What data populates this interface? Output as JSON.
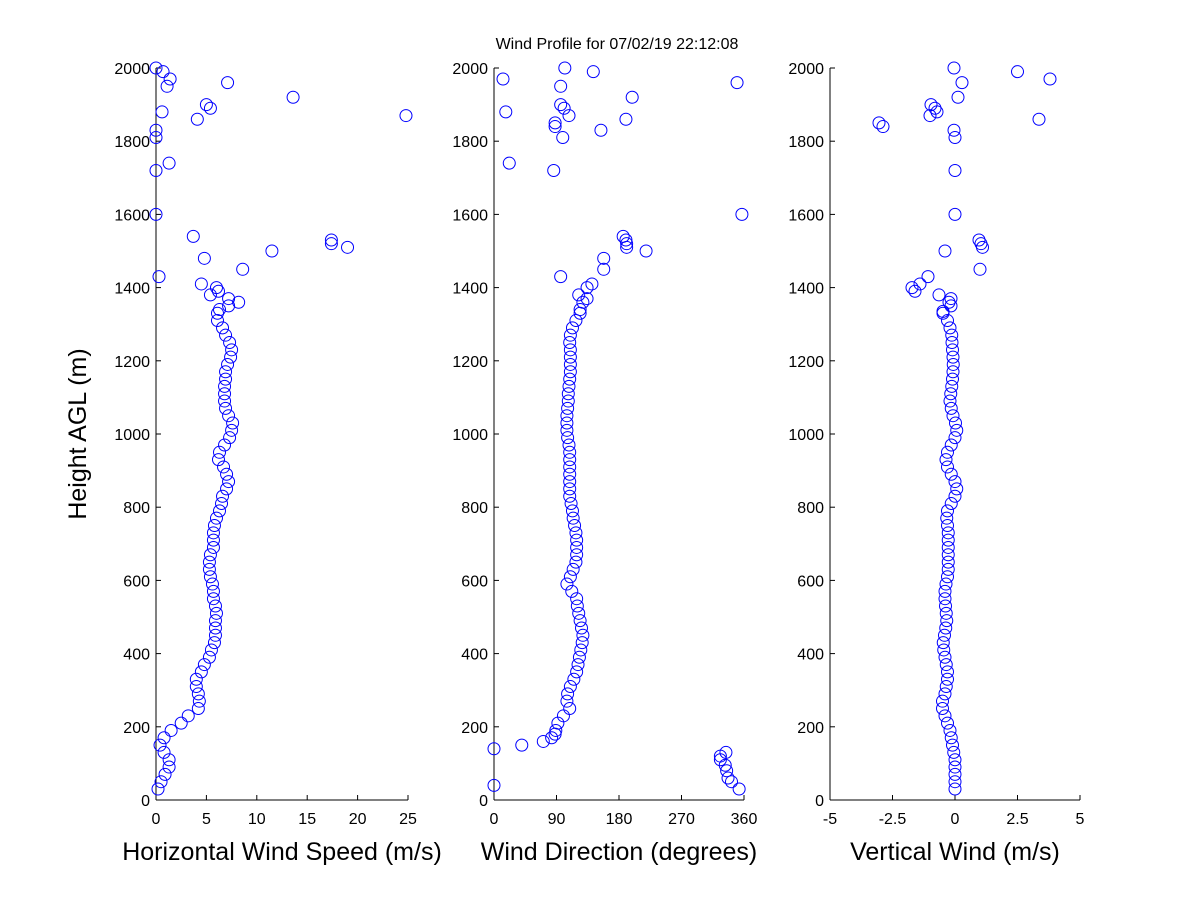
{
  "title": "Wind Profile for  07/02/19 22:12:08",
  "marker_color": "#0000ff",
  "chart_data": [
    {
      "type": "scatter",
      "xlabel": "Horizontal Wind Speed (m/s)",
      "ylabel": "Height AGL (m)",
      "xlim": [
        0,
        25
      ],
      "ylim": [
        0,
        2000
      ],
      "xticks": [
        "0",
        "5",
        "10",
        "15",
        "20",
        "25"
      ],
      "xtick_values": [
        0,
        5,
        10,
        15,
        20,
        25
      ],
      "yticks": [
        "0",
        "200",
        "400",
        "600",
        "800",
        "1000",
        "1200",
        "1400",
        "1600",
        "1800",
        "2000"
      ],
      "ytick_values": [
        0,
        200,
        400,
        600,
        800,
        1000,
        1200,
        1400,
        1600,
        1800,
        2000
      ],
      "grid": false,
      "marker": "open-circle",
      "series": [
        {
          "y": [
            30,
            50,
            70,
            90,
            110,
            130,
            150,
            170,
            190,
            210,
            230,
            250,
            270,
            290,
            310,
            330,
            350,
            370,
            390,
            410,
            430,
            450,
            470,
            490,
            510,
            530,
            550,
            570,
            590,
            610,
            630,
            650,
            670,
            690,
            710,
            730,
            750,
            770,
            790,
            810,
            830,
            850,
            870,
            890,
            910,
            930,
            950,
            970,
            990,
            1010,
            1030,
            1050,
            1070,
            1090,
            1110,
            1130,
            1150,
            1170,
            1190,
            1210,
            1230,
            1250,
            1270,
            1290,
            1310,
            1330,
            1340,
            1350,
            1360,
            1370,
            1380,
            1390,
            1400,
            1410,
            1430,
            1450,
            1480,
            1500,
            1510,
            1520,
            1530,
            1540,
            1600,
            1720,
            1740,
            1810,
            1830,
            1860,
            1870,
            1880,
            1890,
            1900,
            1920,
            1950,
            1960,
            1970,
            1990,
            2000
          ],
          "x": [
            0.2,
            0.5,
            0.9,
            1.3,
            1.3,
            0.8,
            0.4,
            0.8,
            1.5,
            2.5,
            3.2,
            4.2,
            4.3,
            4.2,
            4.0,
            4.0,
            4.5,
            4.8,
            5.3,
            5.5,
            5.8,
            5.9,
            5.9,
            5.9,
            6.0,
            5.9,
            5.7,
            5.7,
            5.6,
            5.4,
            5.3,
            5.3,
            5.4,
            5.7,
            5.7,
            5.7,
            5.8,
            6.0,
            6.3,
            6.5,
            6.6,
            7.0,
            7.2,
            7.0,
            6.7,
            6.2,
            6.3,
            6.8,
            7.3,
            7.5,
            7.6,
            7.2,
            6.9,
            6.8,
            6.8,
            6.8,
            6.9,
            6.9,
            7.1,
            7.4,
            7.5,
            7.3,
            6.9,
            6.6,
            6.1,
            6.1,
            6.3,
            7.2,
            8.2,
            7.2,
            5.4,
            6.2,
            6.0,
            4.5,
            0.3,
            8.6,
            4.8,
            11.5,
            19.0,
            17.4,
            17.4,
            3.7,
            0,
            0,
            1.3,
            0,
            0,
            4.1,
            24.8,
            0.6,
            5.4,
            5.0,
            13.6,
            1.1,
            7.1,
            1.4,
            0.7,
            0
          ]
        }
      ]
    },
    {
      "type": "scatter",
      "xlabel": "Wind Direction (degrees)",
      "ylabel": "",
      "xlim": [
        0,
        360
      ],
      "ylim": [
        0,
        2000
      ],
      "xticks": [
        "0",
        "90",
        "180",
        "270",
        "360"
      ],
      "xtick_values": [
        0,
        90,
        180,
        270,
        360
      ],
      "yticks": [
        "0",
        "200",
        "400",
        "600",
        "800",
        "1000",
        "1200",
        "1400",
        "1600",
        "1800",
        "2000"
      ],
      "ytick_values": [
        0,
        200,
        400,
        600,
        800,
        1000,
        1200,
        1400,
        1600,
        1800,
        2000
      ],
      "grid": false,
      "marker": "open-circle",
      "series": [
        {
          "y": [
            30,
            40,
            50,
            60,
            80,
            95,
            110,
            120,
            130,
            140,
            150,
            160,
            170,
            180,
            190,
            210,
            230,
            250,
            270,
            290,
            310,
            330,
            350,
            370,
            390,
            410,
            430,
            450,
            470,
            490,
            510,
            530,
            550,
            570,
            590,
            610,
            630,
            650,
            670,
            690,
            710,
            730,
            750,
            770,
            790,
            810,
            830,
            850,
            870,
            890,
            910,
            930,
            950,
            970,
            990,
            1010,
            1030,
            1050,
            1070,
            1090,
            1110,
            1130,
            1150,
            1170,
            1190,
            1210,
            1230,
            1250,
            1270,
            1290,
            1310,
            1330,
            1340,
            1360,
            1370,
            1380,
            1400,
            1410,
            1430,
            1450,
            1480,
            1500,
            1510,
            1520,
            1530,
            1540,
            1600,
            1720,
            1740,
            1810,
            1830,
            1840,
            1850,
            1860,
            1870,
            1880,
            1890,
            1900,
            1920,
            1950,
            1960,
            1970,
            1990,
            2000
          ],
          "x": [
            353,
            0,
            342,
            337,
            335,
            333,
            326,
            326,
            334,
            0,
            40,
            71,
            83,
            88,
            89,
            92,
            100,
            109,
            105,
            106,
            110,
            115,
            119,
            121,
            123,
            125,
            127,
            128,
            126,
            124,
            122,
            120,
            119,
            112,
            105,
            110,
            114,
            118,
            119,
            119,
            119,
            118,
            116,
            114,
            113,
            111,
            109,
            109,
            109,
            109,
            109,
            109,
            109,
            108,
            106,
            105,
            105,
            105,
            106,
            107,
            107,
            108,
            109,
            110,
            110,
            110,
            110,
            109,
            110,
            113,
            118,
            124,
            124,
            128,
            134,
            122,
            134,
            141,
            96,
            158,
            158,
            219,
            191,
            191,
            190,
            186,
            357,
            86,
            22,
            99,
            154,
            88,
            88,
            190,
            108,
            17,
            101,
            96,
            199,
            96,
            350,
            13,
            143,
            102
          ]
        }
      ]
    },
    {
      "type": "scatter",
      "xlabel": "Vertical Wind (m/s)",
      "ylabel": "",
      "xlim": [
        -5,
        5
      ],
      "ylim": [
        0,
        2000
      ],
      "xticks": [
        "-5",
        "-2.5",
        "0",
        "2.5",
        "5"
      ],
      "xtick_values": [
        -5,
        -2.5,
        0,
        2.5,
        5
      ],
      "yticks": [
        "0",
        "200",
        "400",
        "600",
        "800",
        "1000",
        "1200",
        "1400",
        "1600",
        "1800",
        "2000"
      ],
      "ytick_values": [
        0,
        200,
        400,
        600,
        800,
        1000,
        1200,
        1400,
        1600,
        1800,
        2000
      ],
      "grid": false,
      "marker": "open-circle",
      "series": [
        {
          "y": [
            30,
            50,
            70,
            90,
            110,
            130,
            150,
            170,
            190,
            210,
            230,
            250,
            270,
            290,
            310,
            330,
            350,
            370,
            390,
            410,
            430,
            450,
            470,
            490,
            510,
            530,
            550,
            570,
            590,
            610,
            630,
            650,
            670,
            690,
            710,
            730,
            750,
            770,
            790,
            810,
            830,
            850,
            870,
            890,
            910,
            930,
            950,
            970,
            990,
            1010,
            1030,
            1050,
            1070,
            1090,
            1110,
            1130,
            1150,
            1170,
            1190,
            1210,
            1230,
            1250,
            1270,
            1290,
            1310,
            1330,
            1335,
            1350,
            1360,
            1370,
            1380,
            1390,
            1400,
            1410,
            1430,
            1450,
            1500,
            1510,
            1520,
            1530,
            1600,
            1720,
            1810,
            1830,
            1840,
            1850,
            1860,
            1870,
            1880,
            1890,
            1900,
            1920,
            1960,
            1970,
            1990,
            2000
          ],
          "x": [
            0,
            0,
            0,
            0,
            0,
            -0.05,
            -0.1,
            -0.15,
            -0.2,
            -0.3,
            -0.4,
            -0.5,
            -0.5,
            -0.4,
            -0.35,
            -0.3,
            -0.3,
            -0.35,
            -0.4,
            -0.45,
            -0.47,
            -0.42,
            -0.37,
            -0.33,
            -0.35,
            -0.38,
            -0.4,
            -0.4,
            -0.36,
            -0.3,
            -0.27,
            -0.27,
            -0.27,
            -0.27,
            -0.27,
            -0.27,
            -0.3,
            -0.33,
            -0.3,
            -0.15,
            0,
            0.07,
            0,
            -0.15,
            -0.3,
            -0.36,
            -0.3,
            -0.15,
            0,
            0.07,
            0.02,
            -0.08,
            -0.15,
            -0.2,
            -0.17,
            -0.13,
            -0.1,
            -0.08,
            -0.07,
            -0.08,
            -0.1,
            -0.12,
            -0.13,
            -0.2,
            -0.3,
            -0.48,
            -0.48,
            -0.16,
            -0.24,
            -0.16,
            -0.64,
            -1.6,
            -1.72,
            -1.4,
            -1.08,
            1.0,
            -0.4,
            1.1,
            1.04,
            0.96,
            0,
            0,
            0,
            -0.04,
            -2.88,
            -3.04,
            3.36,
            -1.0,
            -0.72,
            -0.8,
            -0.96,
            0.12,
            0.28,
            3.8,
            2.5,
            -0.04
          ]
        }
      ]
    }
  ]
}
